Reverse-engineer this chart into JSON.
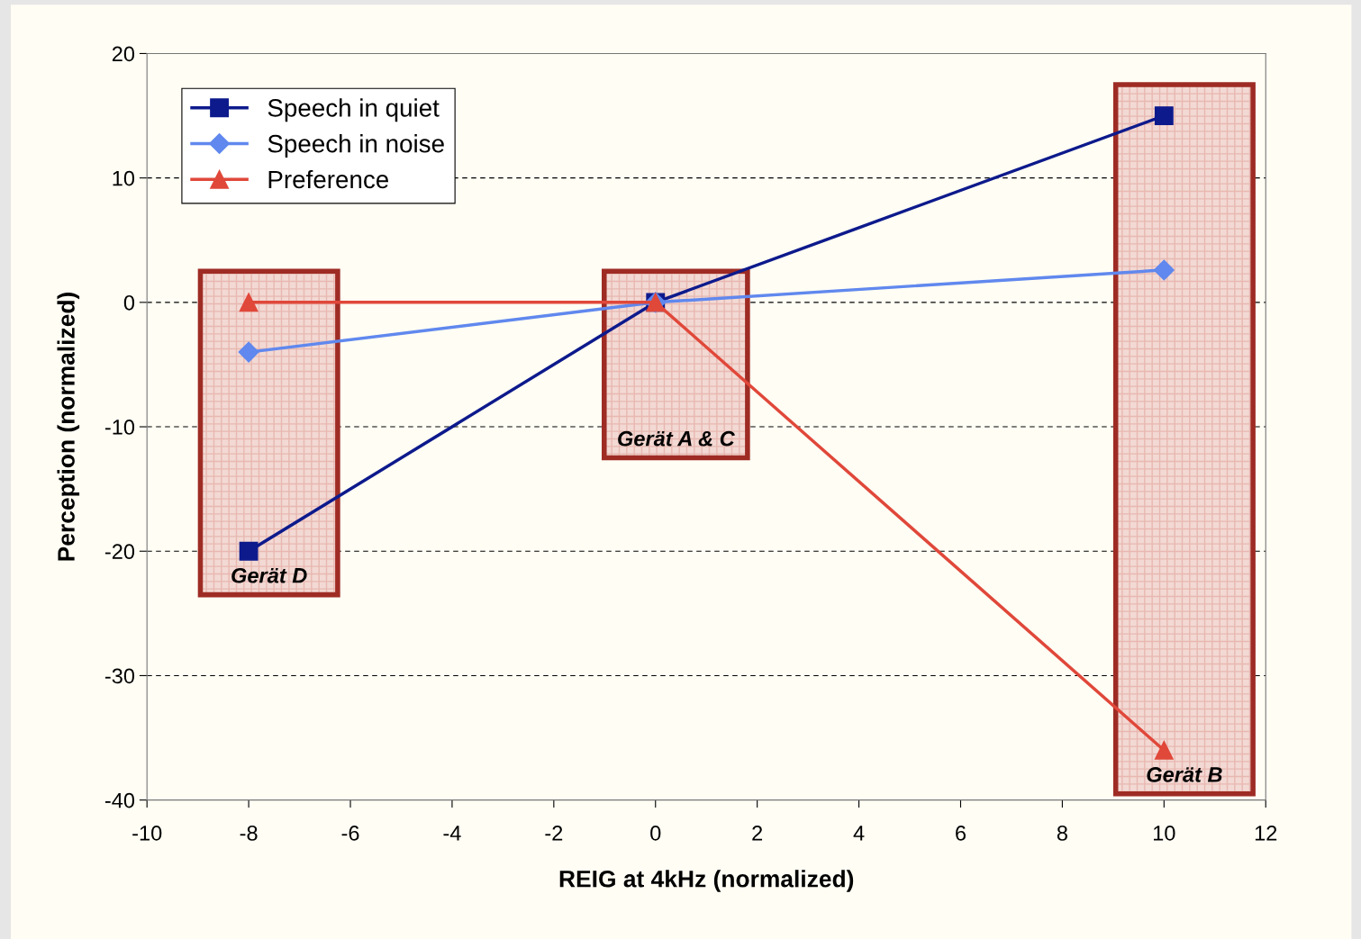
{
  "chart_data": {
    "type": "line",
    "xlabel": "REIG at 4kHz (normalized)",
    "ylabel": "Perception (normalized)",
    "xlim": [
      -10,
      12
    ],
    "xticks": [
      -10,
      -8,
      -6,
      -4,
      -2,
      0,
      2,
      4,
      6,
      8,
      10,
      12
    ],
    "ylim": [
      -40,
      20
    ],
    "yticks": [
      -40,
      -30,
      -20,
      -10,
      0,
      10,
      20
    ],
    "grid": "y",
    "line_style": "solid",
    "legend": "top left",
    "x": [
      -8,
      0,
      10
    ],
    "series": [
      {
        "name": "Speech in quiet",
        "color": "#0d1a8c",
        "marker": "square",
        "values": [
          -20,
          0,
          15
        ]
      },
      {
        "name": "Speech in noise",
        "color": "#6088ee",
        "marker": "diamond",
        "values": [
          -4,
          0,
          2.6
        ]
      },
      {
        "name": "Preference",
        "color": "#e0483a",
        "marker": "triangle",
        "values": [
          0,
          0,
          -36
        ]
      }
    ],
    "annotations": [
      "Gerät D",
      "Gerät A & C",
      "Gerät B"
    ]
  }
}
